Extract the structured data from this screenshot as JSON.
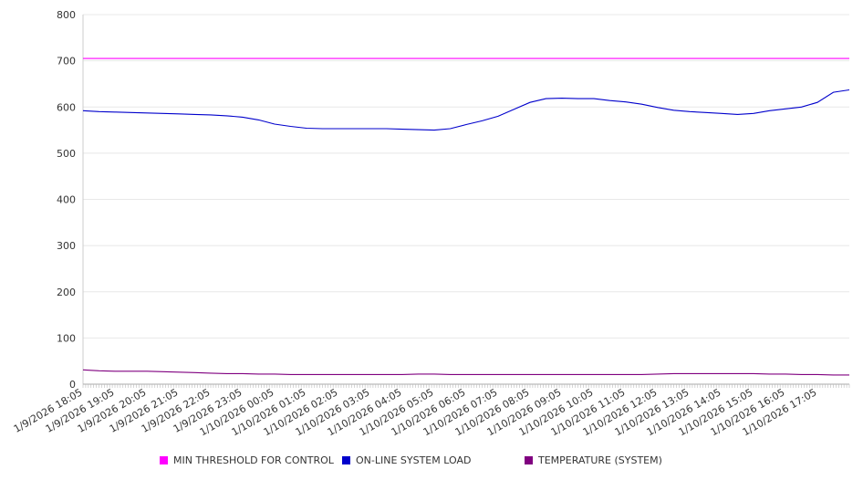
{
  "chart_data": {
    "type": "line",
    "title": "",
    "xlabel": "",
    "ylabel": "",
    "ylim": [
      0,
      800
    ],
    "y_ticks": [
      0,
      100,
      200,
      300,
      400,
      500,
      600,
      700,
      800
    ],
    "grid": "horizontal",
    "legend_position": "bottom",
    "x_tick_labels": [
      "1/9/2026 18:05",
      "1/9/2026 19:05",
      "1/9/2026 20:05",
      "1/9/2026 21:05",
      "1/9/2026 22:05",
      "1/9/2026 23:05",
      "1/10/2026 00:05",
      "1/10/2026 01:05",
      "1/10/2026 02:05",
      "1/10/2026 03:05",
      "1/10/2026 04:05",
      "1/10/2026 05:05",
      "1/10/2026 06:05",
      "1/10/2026 07:05",
      "1/10/2026 08:05",
      "1/10/2026 09:05",
      "1/10/2026 10:05",
      "1/10/2026 11:05",
      "1/10/2026 12:05",
      "1/10/2026 13:05",
      "1/10/2026 14:05",
      "1/10/2026 15:05",
      "1/10/2026 16:05",
      "1/10/2026 17:05"
    ],
    "x_hours": [
      0,
      0.5,
      1,
      1.5,
      2,
      2.5,
      3,
      3.5,
      4,
      4.5,
      5,
      5.5,
      6,
      6.5,
      7,
      7.5,
      8,
      8.5,
      9,
      9.5,
      10,
      10.5,
      11,
      11.5,
      12,
      12.5,
      13,
      13.5,
      14,
      14.5,
      15,
      15.5,
      16,
      16.5,
      17,
      17.5,
      18,
      18.5,
      19,
      19.5,
      20,
      20.5,
      21,
      21.5,
      22,
      22.5,
      23,
      23.5,
      24
    ],
    "series": [
      {
        "name": "MIN THRESHOLD FOR CONTROL",
        "color": "#ff00ff",
        "values": [
          705,
          705,
          705,
          705,
          705,
          705,
          705,
          705,
          705,
          705,
          705,
          705,
          705,
          705,
          705,
          705,
          705,
          705,
          705,
          705,
          705,
          705,
          705,
          705,
          705,
          705,
          705,
          705,
          705,
          705,
          705,
          705,
          705,
          705,
          705,
          705,
          705,
          705,
          705,
          705,
          705,
          705,
          705,
          705,
          705,
          705,
          705,
          705,
          705
        ]
      },
      {
        "name": "ON-LINE SYSTEM LOAD",
        "color": "#0000cc",
        "values": [
          592,
          590,
          589,
          588,
          587,
          586,
          585,
          584,
          583,
          581,
          578,
          572,
          563,
          558,
          554,
          553,
          553,
          553,
          553,
          553,
          552,
          551,
          550,
          553,
          562,
          570,
          580,
          595,
          610,
          618,
          619,
          618,
          618,
          614,
          611,
          606,
          599,
          593,
          590,
          588,
          586,
          584,
          586,
          592,
          596,
          600,
          610,
          632,
          637
        ]
      },
      {
        "name": "TEMPERATURE (SYSTEM)",
        "color": "#800080",
        "values": [
          31,
          29,
          28,
          28,
          28,
          27,
          26,
          25,
          24,
          23,
          23,
          22,
          22,
          21,
          21,
          21,
          21,
          21,
          21,
          21,
          21,
          22,
          22,
          21,
          21,
          21,
          21,
          21,
          21,
          21,
          21,
          21,
          21,
          21,
          21,
          21,
          22,
          23,
          23,
          23,
          23,
          23,
          23,
          22,
          22,
          21,
          21,
          20,
          20
        ]
      }
    ]
  }
}
